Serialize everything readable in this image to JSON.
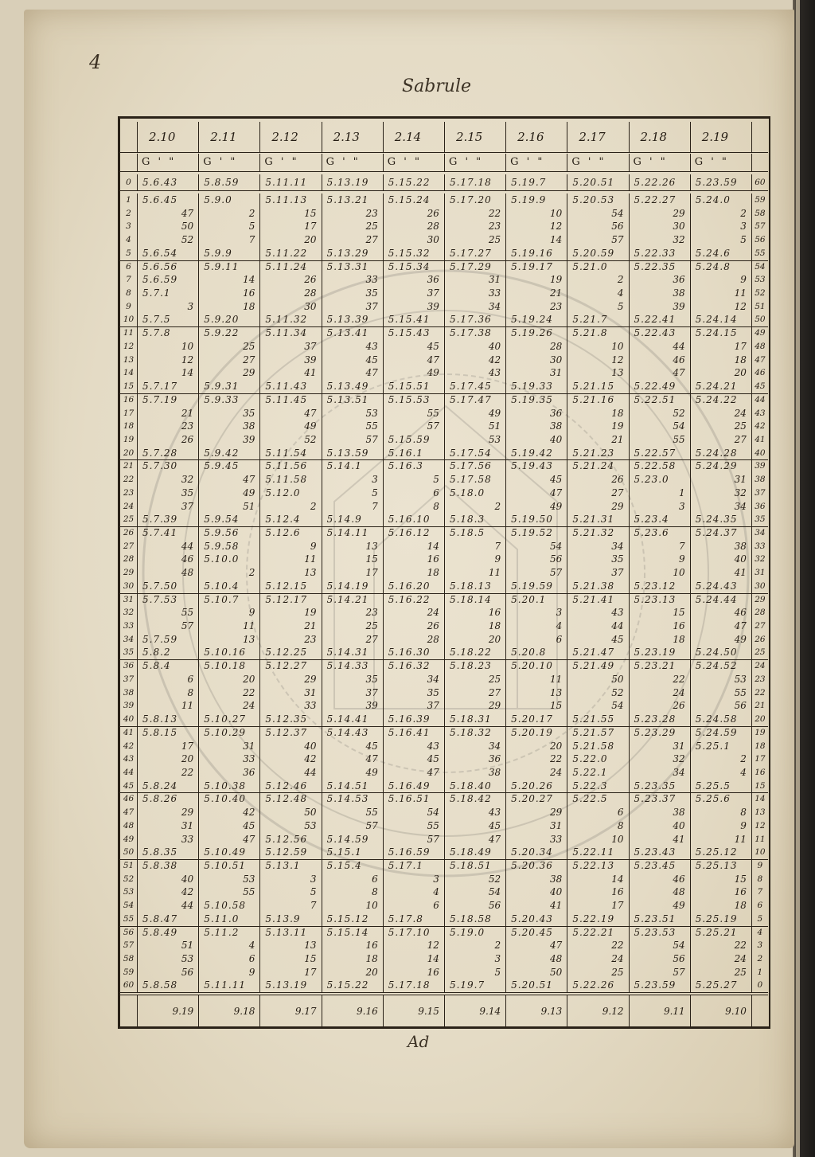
{
  "page": {
    "folio": "4",
    "title": "Sabrule",
    "signature": "Ad"
  },
  "table": {
    "column_headers": [
      "2.10",
      "2.11",
      "2.12",
      "2.13",
      "2.14",
      "2.15",
      "2.16",
      "2.17",
      "2.18",
      "2.19"
    ],
    "unit_header": "G ' \"",
    "footer": [
      "9.19",
      "9.18",
      "9.17",
      "9.16",
      "9.15",
      "9.14",
      "9.13",
      "9.12",
      "9.11",
      "9.10"
    ],
    "rows": [
      [
        "0",
        "5.6.43",
        "5.8.59",
        "5.11.11",
        "5.13.19",
        "5.15.22",
        "5.17.18",
        "5.19.7",
        "5.20.51",
        "5.22.26",
        "5.23.59",
        "60"
      ],
      [
        "1",
        "5.6.45",
        "5.9.0",
        "5.11.13",
        "5.13.21",
        "5.15.24",
        "5.17.20",
        "5.19.9",
        "5.20.53",
        "5.22.27",
        "5.24.0",
        "59"
      ],
      [
        "2",
        "47",
        "2",
        "15",
        "23",
        "26",
        "22",
        "10",
        "54",
        "29",
        "2",
        "58"
      ],
      [
        "3",
        "50",
        "5",
        "17",
        "25",
        "28",
        "23",
        "12",
        "56",
        "30",
        "3",
        "57"
      ],
      [
        "4",
        "52",
        "7",
        "20",
        "27",
        "30",
        "25",
        "14",
        "57",
        "32",
        "5",
        "56"
      ],
      [
        "5",
        "5.6.54",
        "5.9.9",
        "5.11.22",
        "5.13.29",
        "5.15.32",
        "5.17.27",
        "5.19.16",
        "5.20.59",
        "5.22.33",
        "5.24.6",
        "55"
      ],
      [
        "6",
        "5.6.56",
        "5.9.11",
        "5.11.24",
        "5.13.31",
        "5.15.34",
        "5.17.29",
        "5.19.17",
        "5.21.0",
        "5.22.35",
        "5.24.8",
        "54"
      ],
      [
        "7",
        "5.6.59",
        "14",
        "26",
        "33",
        "36",
        "31",
        "19",
        "2",
        "36",
        "9",
        "53"
      ],
      [
        "8",
        "5.7.1",
        "16",
        "28",
        "35",
        "37",
        "33",
        "21",
        "4",
        "38",
        "11",
        "52"
      ],
      [
        "9",
        "3",
        "18",
        "30",
        "37",
        "39",
        "34",
        "23",
        "5",
        "39",
        "12",
        "51"
      ],
      [
        "10",
        "5.7.5",
        "5.9.20",
        "5.11.32",
        "5.13.39",
        "5.15.41",
        "5.17.36",
        "5.19.24",
        "5.21.7",
        "5.22.41",
        "5.24.14",
        "50"
      ],
      [
        "11",
        "5.7.8",
        "5.9.22",
        "5.11.34",
        "5.13.41",
        "5.15.43",
        "5.17.38",
        "5.19.26",
        "5.21.8",
        "5.22.43",
        "5.24.15",
        "49"
      ],
      [
        "12",
        "10",
        "25",
        "37",
        "43",
        "45",
        "40",
        "28",
        "10",
        "44",
        "17",
        "48"
      ],
      [
        "13",
        "12",
        "27",
        "39",
        "45",
        "47",
        "42",
        "30",
        "12",
        "46",
        "18",
        "47"
      ],
      [
        "14",
        "14",
        "29",
        "41",
        "47",
        "49",
        "43",
        "31",
        "13",
        "47",
        "20",
        "46"
      ],
      [
        "15",
        "5.7.17",
        "5.9.31",
        "5.11.43",
        "5.13.49",
        "5.15.51",
        "5.17.45",
        "5.19.33",
        "5.21.15",
        "5.22.49",
        "5.24.21",
        "45"
      ],
      [
        "16",
        "5.7.19",
        "5.9.33",
        "5.11.45",
        "5.13.51",
        "5.15.53",
        "5.17.47",
        "5.19.35",
        "5.21.16",
        "5.22.51",
        "5.24.22",
        "44"
      ],
      [
        "17",
        "21",
        "35",
        "47",
        "53",
        "55",
        "49",
        "36",
        "18",
        "52",
        "24",
        "43"
      ],
      [
        "18",
        "23",
        "38",
        "49",
        "55",
        "57",
        "51",
        "38",
        "19",
        "54",
        "25",
        "42"
      ],
      [
        "19",
        "26",
        "39",
        "52",
        "57",
        "5.15.59",
        "53",
        "40",
        "21",
        "55",
        "27",
        "41"
      ],
      [
        "20",
        "5.7.28",
        "5.9.42",
        "5.11.54",
        "5.13.59",
        "5.16.1",
        "5.17.54",
        "5.19.42",
        "5.21.23",
        "5.22.57",
        "5.24.28",
        "40"
      ],
      [
        "21",
        "5.7.30",
        "5.9.45",
        "5.11.56",
        "5.14.1",
        "5.16.3",
        "5.17.56",
        "5.19.43",
        "5.21.24",
        "5.22.58",
        "5.24.29",
        "39"
      ],
      [
        "22",
        "32",
        "47",
        "5.11.58",
        "3",
        "5",
        "5.17.58",
        "45",
        "26",
        "5.23.0",
        "31",
        "38"
      ],
      [
        "23",
        "35",
        "49",
        "5.12.0",
        "5",
        "6",
        "5.18.0",
        "47",
        "27",
        "1",
        "32",
        "37"
      ],
      [
        "24",
        "37",
        "51",
        "2",
        "7",
        "8",
        "2",
        "49",
        "29",
        "3",
        "34",
        "36"
      ],
      [
        "25",
        "5.7.39",
        "5.9.54",
        "5.12.4",
        "5.14.9",
        "5.16.10",
        "5.18.3",
        "5.19.50",
        "5.21.31",
        "5.23.4",
        "5.24.35",
        "35"
      ],
      [
        "26",
        "5.7.41",
        "5.9.56",
        "5.12.6",
        "5.14.11",
        "5.16.12",
        "5.18.5",
        "5.19.52",
        "5.21.32",
        "5.23.6",
        "5.24.37",
        "34"
      ],
      [
        "27",
        "44",
        "5.9.58",
        "9",
        "13",
        "14",
        "7",
        "54",
        "34",
        "7",
        "38",
        "33"
      ],
      [
        "28",
        "46",
        "5.10.0",
        "11",
        "15",
        "16",
        "9",
        "56",
        "35",
        "9",
        "40",
        "32"
      ],
      [
        "29",
        "48",
        "2",
        "13",
        "17",
        "18",
        "11",
        "57",
        "37",
        "10",
        "41",
        "31"
      ],
      [
        "30",
        "5.7.50",
        "5.10.4",
        "5.12.15",
        "5.14.19",
        "5.16.20",
        "5.18.13",
        "5.19.59",
        "5.21.38",
        "5.23.12",
        "5.24.43",
        "30"
      ],
      [
        "31",
        "5.7.53",
        "5.10.7",
        "5.12.17",
        "5.14.21",
        "5.16.22",
        "5.18.14",
        "5.20.1",
        "5.21.41",
        "5.23.13",
        "5.24.44",
        "29"
      ],
      [
        "32",
        "55",
        "9",
        "19",
        "23",
        "24",
        "16",
        "3",
        "43",
        "15",
        "46",
        "28"
      ],
      [
        "33",
        "57",
        "11",
        "21",
        "25",
        "26",
        "18",
        "4",
        "44",
        "16",
        "47",
        "27"
      ],
      [
        "34",
        "5.7.59",
        "13",
        "23",
        "27",
        "28",
        "20",
        "6",
        "45",
        "18",
        "49",
        "26"
      ],
      [
        "35",
        "5.8.2",
        "5.10.16",
        "5.12.25",
        "5.14.31",
        "5.16.30",
        "5.18.22",
        "5.20.8",
        "5.21.47",
        "5.23.19",
        "5.24.50",
        "25"
      ],
      [
        "36",
        "5.8.4",
        "5.10.18",
        "5.12.27",
        "5.14.33",
        "5.16.32",
        "5.18.23",
        "5.20.10",
        "5.21.49",
        "5.23.21",
        "5.24.52",
        "24"
      ],
      [
        "37",
        "6",
        "20",
        "29",
        "35",
        "34",
        "25",
        "11",
        "50",
        "22",
        "53",
        "23"
      ],
      [
        "38",
        "8",
        "22",
        "31",
        "37",
        "35",
        "27",
        "13",
        "52",
        "24",
        "55",
        "22"
      ],
      [
        "39",
        "11",
        "24",
        "33",
        "39",
        "37",
        "29",
        "15",
        "54",
        "26",
        "56",
        "21"
      ],
      [
        "40",
        "5.8.13",
        "5.10.27",
        "5.12.35",
        "5.14.41",
        "5.16.39",
        "5.18.31",
        "5.20.17",
        "5.21.55",
        "5.23.28",
        "5.24.58",
        "20"
      ],
      [
        "41",
        "5.8.15",
        "5.10.29",
        "5.12.37",
        "5.14.43",
        "5.16.41",
        "5.18.32",
        "5.20.19",
        "5.21.57",
        "5.23.29",
        "5.24.59",
        "19"
      ],
      [
        "42",
        "17",
        "31",
        "40",
        "45",
        "43",
        "34",
        "20",
        "5.21.58",
        "31",
        "5.25.1",
        "18"
      ],
      [
        "43",
        "20",
        "33",
        "42",
        "47",
        "45",
        "36",
        "22",
        "5.22.0",
        "32",
        "2",
        "17"
      ],
      [
        "44",
        "22",
        "36",
        "44",
        "49",
        "47",
        "38",
        "24",
        "5.22.1",
        "34",
        "4",
        "16"
      ],
      [
        "45",
        "5.8.24",
        "5.10.38",
        "5.12.46",
        "5.14.51",
        "5.16.49",
        "5.18.40",
        "5.20.26",
        "5.22.3",
        "5.23.35",
        "5.25.5",
        "15"
      ],
      [
        "46",
        "5.8.26",
        "5.10.40",
        "5.12.48",
        "5.14.53",
        "5.16.51",
        "5.18.42",
        "5.20.27",
        "5.22.5",
        "5.23.37",
        "5.25.6",
        "14"
      ],
      [
        "47",
        "29",
        "42",
        "50",
        "55",
        "54",
        "43",
        "29",
        "6",
        "38",
        "8",
        "13"
      ],
      [
        "48",
        "31",
        "45",
        "53",
        "57",
        "55",
        "45",
        "31",
        "8",
        "40",
        "9",
        "12"
      ],
      [
        "49",
        "33",
        "47",
        "5.12.56",
        "5.14.59",
        "57",
        "47",
        "33",
        "10",
        "41",
        "11",
        "11"
      ],
      [
        "50",
        "5.8.35",
        "5.10.49",
        "5.12.59",
        "5.15.1",
        "5.16.59",
        "5.18.49",
        "5.20.34",
        "5.22.11",
        "5.23.43",
        "5.25.12",
        "10"
      ],
      [
        "51",
        "5.8.38",
        "5.10.51",
        "5.13.1",
        "5.15.4",
        "5.17.1",
        "5.18.51",
        "5.20.36",
        "5.22.13",
        "5.23.45",
        "5.25.13",
        "9"
      ],
      [
        "52",
        "40",
        "53",
        "3",
        "6",
        "3",
        "52",
        "38",
        "14",
        "46",
        "15",
        "8"
      ],
      [
        "53",
        "42",
        "55",
        "5",
        "8",
        "4",
        "54",
        "40",
        "16",
        "48",
        "16",
        "7"
      ],
      [
        "54",
        "44",
        "5.10.58",
        "7",
        "10",
        "6",
        "56",
        "41",
        "17",
        "49",
        "18",
        "6"
      ],
      [
        "55",
        "5.8.47",
        "5.11.0",
        "5.13.9",
        "5.15.12",
        "5.17.8",
        "5.18.58",
        "5.20.43",
        "5.22.19",
        "5.23.51",
        "5.25.19",
        "5"
      ],
      [
        "56",
        "5.8.49",
        "5.11.2",
        "5.13.11",
        "5.15.14",
        "5.17.10",
        "5.19.0",
        "5.20.45",
        "5.22.21",
        "5.23.53",
        "5.25.21",
        "4"
      ],
      [
        "57",
        "51",
        "4",
        "13",
        "16",
        "12",
        "2",
        "47",
        "22",
        "54",
        "22",
        "3"
      ],
      [
        "58",
        "53",
        "6",
        "15",
        "18",
        "14",
        "3",
        "48",
        "24",
        "56",
        "24",
        "2"
      ],
      [
        "59",
        "56",
        "9",
        "17",
        "20",
        "16",
        "5",
        "50",
        "25",
        "57",
        "25",
        "1"
      ],
      [
        "60",
        "5.8.58",
        "5.11.11",
        "5.13.19",
        "5.15.22",
        "5.17.18",
        "5.19.7",
        "5.20.51",
        "5.22.26",
        "5.23.59",
        "5.25.27",
        "0"
      ]
    ]
  },
  "colors": {
    "paper": "#e8dfcb",
    "ink": "#251d14",
    "binding": "#1b1917"
  }
}
